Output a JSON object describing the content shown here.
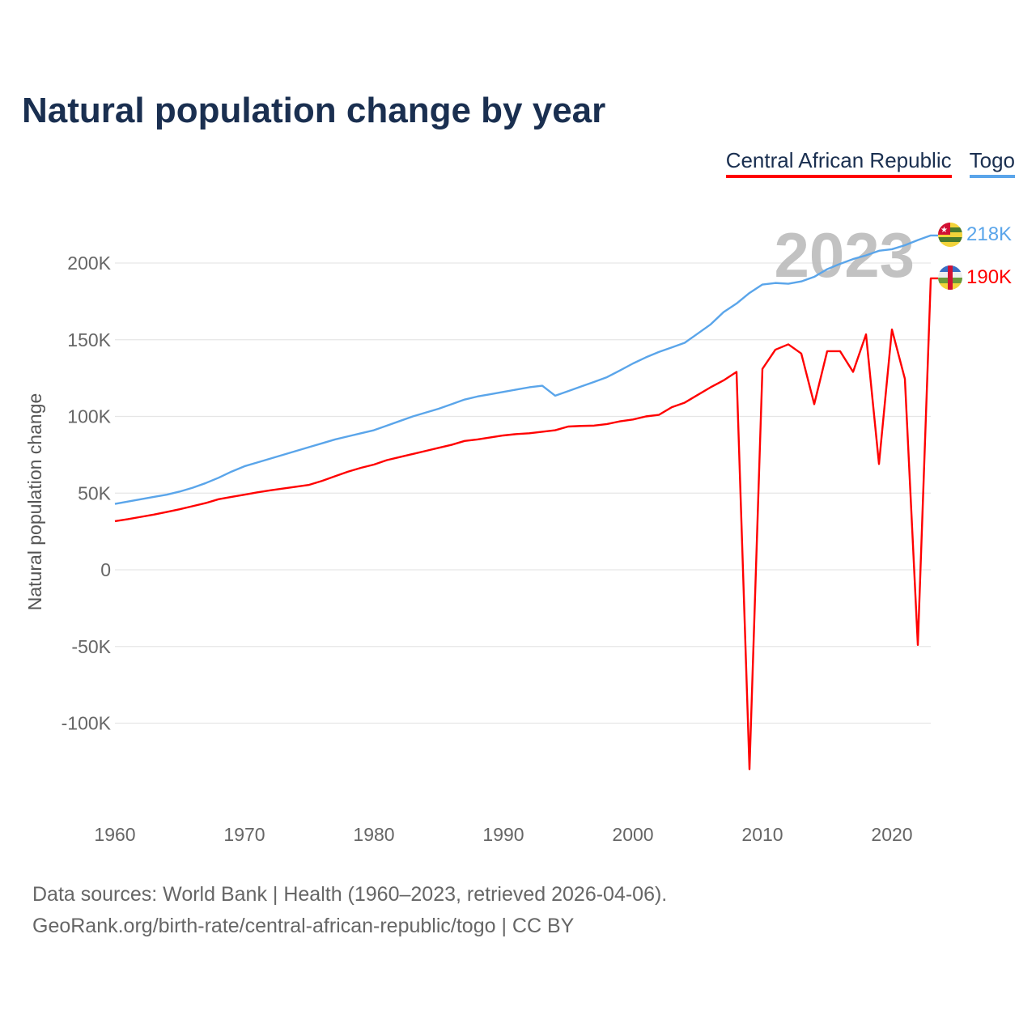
{
  "title": "Natural population change by year",
  "legend": [
    {
      "label": "Central African Republic",
      "color": "#ff0000"
    },
    {
      "label": "Togo",
      "color": "#5aa5ea"
    }
  ],
  "chart_data": {
    "type": "line",
    "title": "Natural population change by year",
    "xlabel": "",
    "ylabel": "Natural population change",
    "xlim": [
      1960,
      2023
    ],
    "ylim": [
      -150000,
      230000
    ],
    "grid": true,
    "legend_position": "top-right",
    "x_ticks": [
      1960,
      1970,
      1980,
      1990,
      2000,
      2010,
      2020
    ],
    "x_tick_labels": [
      "1960",
      "1970",
      "1980",
      "1990",
      "2000",
      "2010",
      "2020"
    ],
    "y_ticks": [
      200000,
      150000,
      100000,
      50000,
      0,
      -50000,
      -100000
    ],
    "y_tick_labels": [
      "200K",
      "150K",
      "100K",
      "50K",
      "0",
      "-50K",
      "-100K"
    ],
    "year_overlay": "2023",
    "x_start": 1960,
    "series": [
      {
        "name": "Central African Republic",
        "color": "#ff0000",
        "end_label": "190K",
        "values_thousands": [
          31.7,
          33,
          34.5,
          36,
          37.7,
          39.5,
          41.5,
          43.5,
          46,
          47.5,
          49,
          50.5,
          51.8,
          53,
          54.2,
          55.4,
          58,
          61,
          64,
          66.5,
          68.6,
          71.5,
          73.5,
          75.5,
          77.5,
          79.5,
          81.5,
          84,
          85,
          86.3,
          87.6,
          88.5,
          89,
          90,
          91,
          93.4,
          93.8,
          94,
          95,
          96.8,
          98,
          100,
          101,
          106,
          109,
          114,
          119,
          123.5,
          129,
          -130,
          131,
          143.5,
          147,
          141,
          108,
          142.5,
          142.5,
          129,
          153.5,
          69,
          156.7,
          124.5,
          -49,
          190
        ]
      },
      {
        "name": "Togo",
        "color": "#5aa5ea",
        "end_label": "218K",
        "values_thousands": [
          43,
          44.5,
          46,
          47.5,
          49,
          51,
          53.5,
          56.5,
          60,
          64,
          67.5,
          70,
          72.5,
          75,
          77.5,
          80,
          82.5,
          85,
          87,
          89,
          91,
          94,
          97,
          100,
          102.5,
          105,
          108,
          111,
          113,
          114.5,
          116,
          117.5,
          119,
          120,
          113.5,
          116.5,
          119.5,
          122.5,
          125.6,
          130,
          134.5,
          138.5,
          142,
          145,
          148,
          154,
          160,
          168,
          173.6,
          180.5,
          186,
          187,
          186.5,
          188,
          191,
          196,
          199.5,
          202.6,
          205,
          208,
          209,
          211.6,
          215,
          218
        ]
      }
    ]
  },
  "footer": {
    "line1": "Data sources: World Bank | Health (1960–2023, retrieved 2026-04-06).",
    "line2": "GeoRank.org/birth-rate/central-african-republic/togo | CC BY"
  }
}
